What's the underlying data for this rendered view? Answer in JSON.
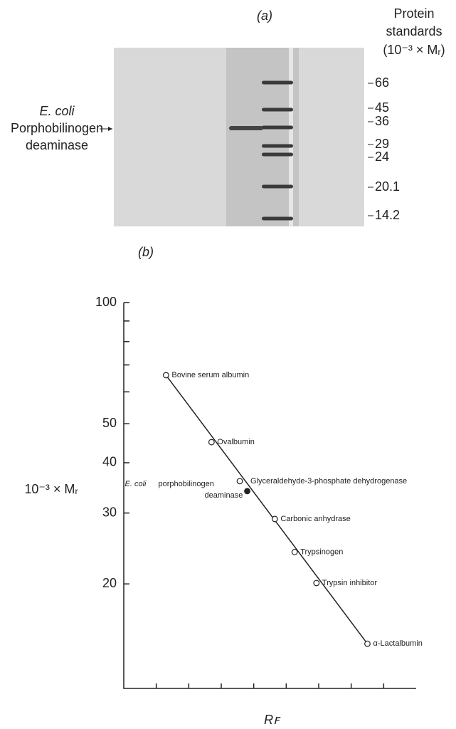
{
  "panel_a": {
    "title": "(a)",
    "standards_title": [
      "Protein",
      "standards",
      "(10⁻³ × Mᵣ)"
    ],
    "sample_label": [
      "E. coli",
      "Porphobilinogen",
      "deaminase"
    ],
    "markers": [
      "66",
      "45",
      "36",
      "29",
      "24",
      "20.1",
      "14.2"
    ]
  },
  "chart_data": {
    "type": "scatter",
    "title": "(b)",
    "ylabel": "10⁻³ × Mᵣ",
    "xlabel": "Rꜰ",
    "log_y": true,
    "ylim": [
      11,
      100
    ],
    "yticks": [
      20,
      30,
      40,
      50,
      100
    ],
    "yminor": [
      60,
      70,
      80,
      90
    ],
    "xlim": [
      0,
      0.9
    ],
    "xminor": [
      0.1,
      0.2,
      0.3,
      0.4,
      0.5,
      0.6,
      0.7,
      0.8
    ],
    "series": [
      {
        "marker": "open",
        "fit_line": true,
        "color": "#222",
        "x": [
          0.13,
          0.27,
          0.357,
          0.465,
          0.526,
          0.593,
          0.75
        ],
        "values": [
          66,
          45,
          36,
          29,
          24,
          20.1,
          14.2
        ],
        "labels": [
          "Bovine serum albumin",
          "Ovalbumin",
          "Glyceraldehyde-3-phosphate dehydrogenase",
          "Carbonic anhydrase",
          "Trypsinogen",
          "Trypsin inhibitor",
          "α-Lactalbumin"
        ]
      },
      {
        "marker": "filled",
        "color": "#222",
        "x": [
          0.38
        ],
        "values": [
          34
        ],
        "labels": [
          [
            "E. coli",
            "porphobilinogen",
            "deaminase"
          ]
        ]
      }
    ]
  }
}
